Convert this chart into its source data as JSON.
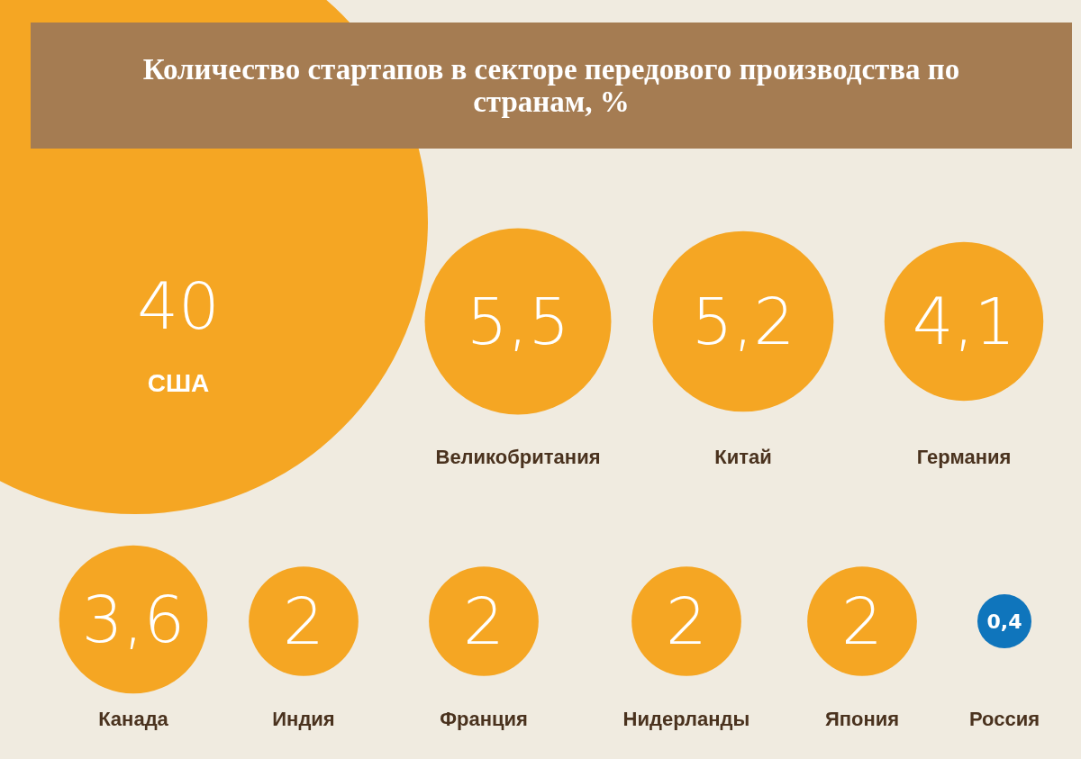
{
  "chart_data": {
    "type": "other",
    "title": "Количество стартапов в секторе передового производства по странам, %",
    "categories": [
      "США",
      "Великобритания",
      "Китай",
      "Германия",
      "Канада",
      "Индия",
      "Франция",
      "Нидерланды",
      "Япония",
      "Россия"
    ],
    "values": [
      40,
      5.5,
      5.2,
      4.1,
      3.6,
      2,
      2,
      2,
      2,
      0.4
    ],
    "value_labels": [
      "40",
      "5,5",
      "5,2",
      "4,1",
      "3,6",
      "2",
      "2",
      "2",
      "2",
      "0,4"
    ],
    "colors": [
      "#f5a623",
      "#f5a623",
      "#f5a623",
      "#f5a623",
      "#f5a623",
      "#f5a623",
      "#f5a623",
      "#f5a623",
      "#f5a623",
      "#0f75bc"
    ]
  }
}
